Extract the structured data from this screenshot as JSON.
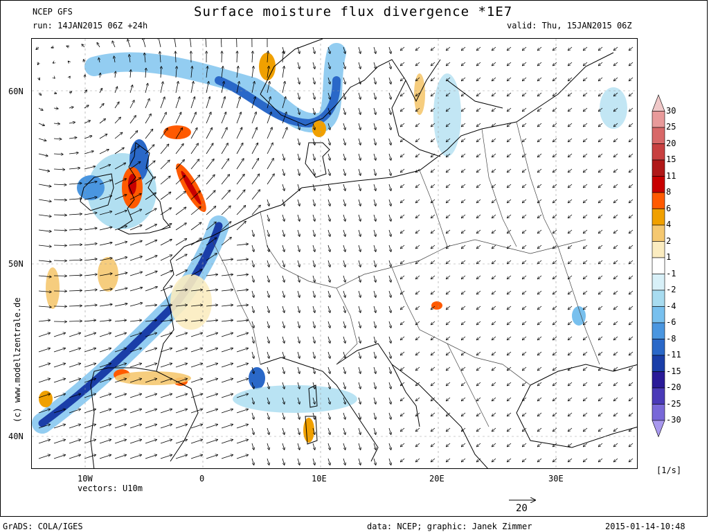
{
  "header": {
    "model": "NCEP GFS",
    "run": "run: 14JAN2015 06Z +24h",
    "title": "Surface moisture flux divergence *1E7",
    "valid": "valid: Thu, 15JAN2015 06Z"
  },
  "axes": {
    "lat_labels": [
      "60N",
      "50N",
      "40N"
    ],
    "lon_labels": [
      "10W",
      "0",
      "10E",
      "20E",
      "30E"
    ]
  },
  "vectors_label": "vectors: U10m",
  "reference_vector": "20",
  "units": "[1/s]",
  "copyright": "(c) www.modellzentrale.de",
  "footer": {
    "left": "GrADS: COLA/IGES",
    "data_credit": "data: NCEP; graphic: Janek Zimmer",
    "timestamp": "2015-01-14-10:48"
  },
  "colorbar": {
    "levels": [
      "30",
      "25",
      "20",
      "15",
      "11",
      "8",
      "6",
      "4",
      "2",
      "1",
      "-1",
      "-2",
      "-4",
      "-6",
      "-8",
      "-11",
      "-15",
      "-20",
      "-25",
      "-30"
    ],
    "colors": [
      "#f0c8c8",
      "#e89a9a",
      "#d86868",
      "#c84040",
      "#b01818",
      "#c80000",
      "#ff5a00",
      "#f0a000",
      "#f5c870",
      "#fbecc0",
      "#ffffff",
      "#d8f0f8",
      "#a8dcf0",
      "#78c0ee",
      "#4a96e0",
      "#2a68c8",
      "#1a3ea8",
      "#2a1a98",
      "#4a3ab8",
      "#7868d8",
      "#a898ee"
    ]
  },
  "colors": {
    "negative_core": "#1a3ea8",
    "negative_band": "#78c0ee",
    "positive_core": "#c80000",
    "positive_band": "#f0a000"
  }
}
